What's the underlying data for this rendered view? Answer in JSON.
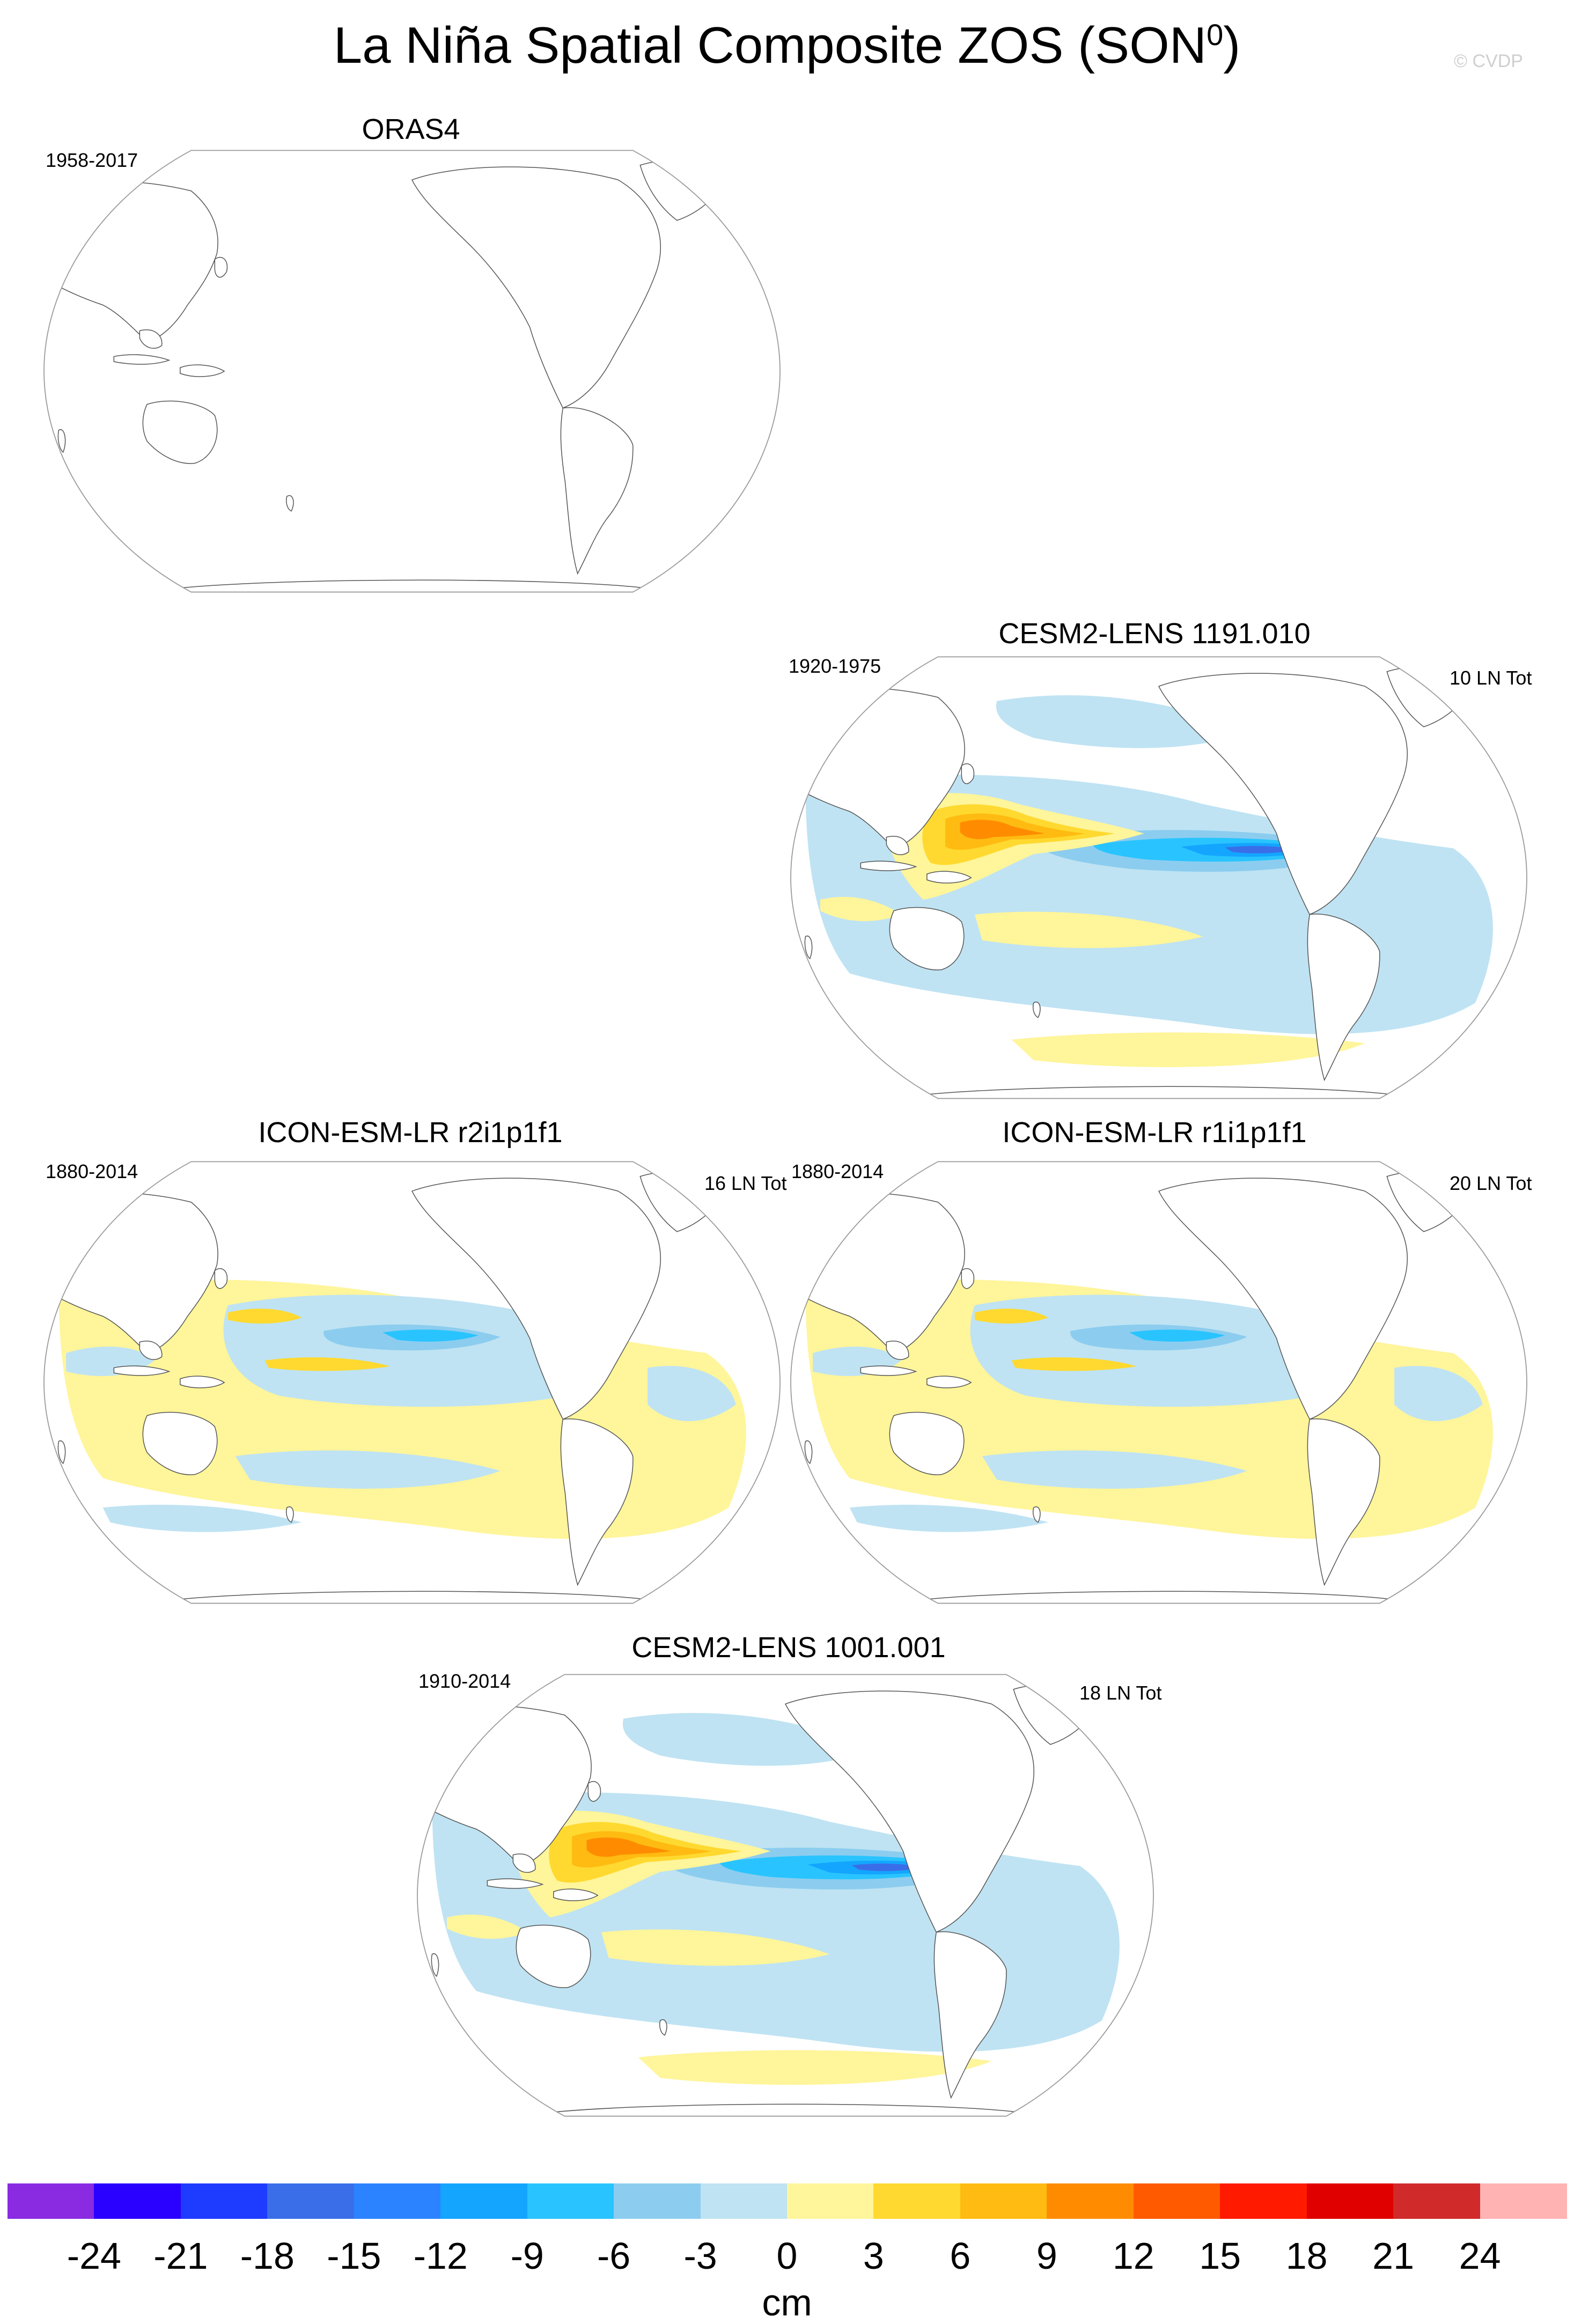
{
  "title": {
    "main": "La Niña Spatial Composite ZOS (SON",
    "sup": "0",
    "close": ")"
  },
  "copyright": "© CVDP",
  "panels": [
    {
      "id": "oras4",
      "title": "ORAS4",
      "period": "1958-2017",
      "count": "",
      "filled": false
    },
    {
      "id": "cesm2-1191",
      "title": "CESM2-LENS 1191.010",
      "period": "1920-1975",
      "count": "10 LN Tot",
      "filled": true,
      "pattern": "strong"
    },
    {
      "id": "icon-r2",
      "title": "ICON-ESM-LR r2i1p1f1",
      "period": "1880-2014",
      "count": "16 LN Tot",
      "filled": true,
      "pattern": "weak"
    },
    {
      "id": "icon-r1",
      "title": "ICON-ESM-LR r1i1p1f1",
      "period": "1880-2014",
      "count": "20 LN Tot",
      "filled": true,
      "pattern": "weak"
    },
    {
      "id": "cesm2-1001",
      "title": "CESM2-LENS 1001.001",
      "period": "1910-2014",
      "count": "18 LN Tot",
      "filled": true,
      "pattern": "strong"
    }
  ],
  "colorbar": {
    "colors": [
      "#8a2be2",
      "#2a00ff",
      "#1e3cff",
      "#3a6ee8",
      "#2b83ff",
      "#14a5ff",
      "#29c4ff",
      "#8ccdef",
      "#bfe3f3",
      "#fff59a",
      "#ffd92f",
      "#ffbb11",
      "#ff8c00",
      "#ff5a00",
      "#ff1a00",
      "#e00000",
      "#d02a2a",
      "#ffb3b3"
    ],
    "tick_labels": [
      "-24",
      "-21",
      "-18",
      "-15",
      "-12",
      "-9",
      "-6",
      "-3",
      "0",
      "3",
      "6",
      "9",
      "12",
      "15",
      "18",
      "21",
      "24"
    ],
    "units": "cm"
  }
}
